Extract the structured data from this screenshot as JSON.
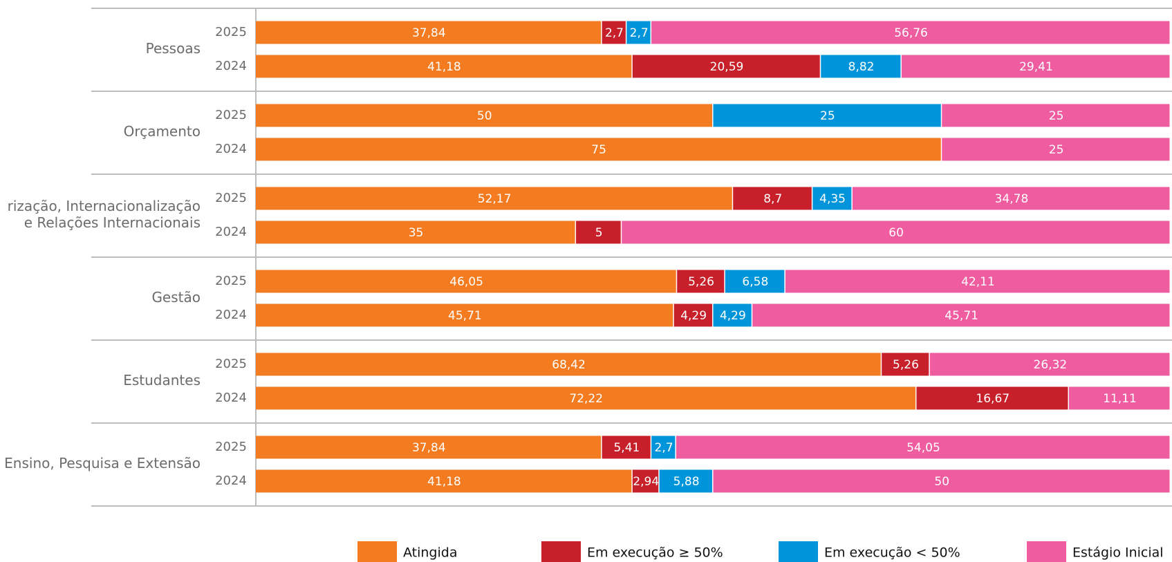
{
  "chart_data": {
    "type": "bar",
    "orientation": "horizontal",
    "stacked": true,
    "xlim": [
      0,
      100
    ],
    "group_labels": [
      [
        "Pessoas"
      ],
      [
        "Orçamento"
      ],
      [
        "rização, Internacionalização",
        "e Relações Internacionais"
      ],
      [
        "Gestão"
      ],
      [
        "Estudantes"
      ],
      [
        "Ensino, Pesquisa e Extensão"
      ]
    ],
    "categories": [
      "2025",
      "2024",
      "2025",
      "2024",
      "2025",
      "2024",
      "2025",
      "2024",
      "2025",
      "2024",
      "2025",
      "2024"
    ],
    "series": [
      {
        "name": "Atingida",
        "color": "#f47b20",
        "values": [
          37.84,
          41.18,
          50,
          75,
          52.17,
          35,
          46.05,
          45.71,
          68.42,
          72.22,
          37.84,
          41.18
        ],
        "value_labels": [
          "37,84",
          "41,18",
          "50",
          "75",
          "52,17",
          "35",
          "46,05",
          "45,71",
          "68,42",
          "72,22",
          "37,84",
          "41,18"
        ]
      },
      {
        "name": "Em execução ≥ 50%",
        "color": "#c8202a",
        "values": [
          2.7,
          20.59,
          null,
          null,
          8.7,
          5,
          5.26,
          4.29,
          5.26,
          16.67,
          5.41,
          2.94
        ],
        "value_labels": [
          "2,7",
          "20,59",
          null,
          null,
          "8,7",
          "5",
          "5,26",
          "4,29",
          "5,26",
          "16,67",
          "5,41",
          "2,94"
        ]
      },
      {
        "name": "Em execução < 50%",
        "color": "#0095da",
        "values": [
          2.7,
          8.82,
          25,
          null,
          4.35,
          null,
          6.58,
          4.29,
          null,
          null,
          2.7,
          5.88
        ],
        "value_labels": [
          "2,7",
          "8,82",
          "25",
          null,
          "4,35",
          null,
          "6,58",
          "4,29",
          null,
          null,
          "2,7",
          "5,88"
        ]
      },
      {
        "name": "Estágio Inicial",
        "color": "#f05ca0",
        "values": [
          56.76,
          29.41,
          25,
          25,
          34.78,
          60,
          42.11,
          45.71,
          26.32,
          11.11,
          54.05,
          50
        ],
        "value_labels": [
          "56,76",
          "29,41",
          "25",
          "25",
          "34,78",
          "60",
          "42,11",
          "45,71",
          "26,32",
          "11,11",
          "54,05",
          "50"
        ]
      }
    ]
  }
}
